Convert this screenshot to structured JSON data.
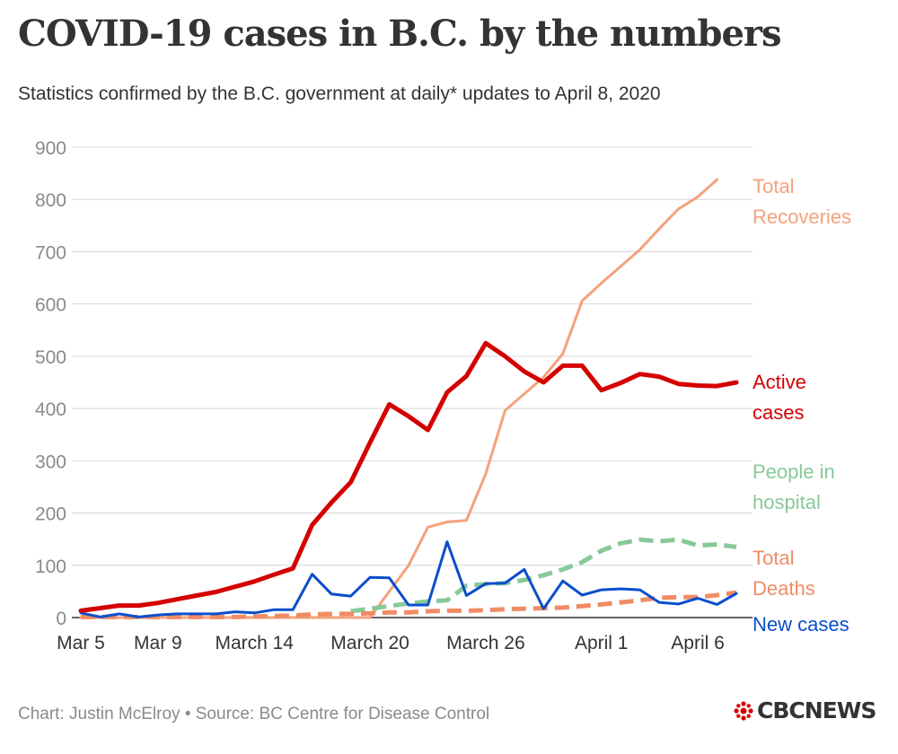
{
  "header": {
    "title": "COVID-19 cases in B.C. by the numbers",
    "subtitle": "Statistics confirmed by the B.C. government at daily* updates to April 8, 2020"
  },
  "footer": {
    "source": "Chart: Justin McElroy • Source: BC Centre for Disease Control",
    "logo_text": "CBCNEWS"
  },
  "chart_data": {
    "type": "line",
    "x": [
      "Mar 5",
      "Mar 6",
      "Mar 7",
      "Mar 8",
      "Mar 9",
      "Mar 10",
      "Mar 11",
      "Mar 12",
      "Mar 13",
      "March 14",
      "Mar 15",
      "Mar 16",
      "Mar 17",
      "Mar 18",
      "Mar 19",
      "March 20",
      "Mar 21",
      "Mar 22",
      "Mar 23",
      "Mar 24",
      "Mar 25",
      "March 26",
      "Mar 27",
      "Mar 28",
      "Mar 29",
      "Mar 30",
      "Mar 31",
      "April 1",
      "Apr 2",
      "Apr 3",
      "Apr 4",
      "Apr 5",
      "April 6",
      "Apr 7",
      "Apr 8"
    ],
    "xticks": [
      {
        "index": 0,
        "label": "Mar 5"
      },
      {
        "index": 4,
        "label": "Mar 9"
      },
      {
        "index": 9,
        "label": "March 14"
      },
      {
        "index": 15,
        "label": "March 20"
      },
      {
        "index": 21,
        "label": "March 26"
      },
      {
        "index": 27,
        "label": "April 1"
      },
      {
        "index": 32,
        "label": "April 6"
      }
    ],
    "yticks": [
      0,
      100,
      200,
      300,
      400,
      500,
      600,
      700,
      800,
      900
    ],
    "ylim": [
      0,
      900
    ],
    "grid": true,
    "legend": "direct labels at right end of lines",
    "series": [
      {
        "name": "Total Recoveries",
        "label_lines": [
          "Total",
          "Recoveries"
        ],
        "color": "#f4a27c",
        "style": "solid",
        "width": 3,
        "values": [
          0,
          0,
          0,
          0,
          0,
          0,
          0,
          0,
          0,
          0,
          0,
          0,
          0,
          0,
          0,
          0,
          50,
          100,
          173,
          183,
          186,
          275,
          396,
          428,
          460,
          505,
          606,
          640,
          672,
          704,
          744,
          782,
          805,
          838,
          null
        ]
      },
      {
        "name": "Active cases",
        "label_lines": [
          "Active",
          "cases"
        ],
        "color": "#d40000",
        "style": "solid",
        "width": 5,
        "values": [
          13,
          18,
          23,
          23,
          28,
          35,
          42,
          49,
          59,
          69,
          82,
          94,
          177,
          220,
          259,
          335,
          408,
          385,
          359,
          431,
          462,
          525,
          500,
          471,
          450,
          482,
          482,
          435,
          449,
          466,
          461,
          447,
          444,
          443,
          450
        ]
      },
      {
        "name": "People in hospital",
        "label_lines": [
          "People in",
          "hospital"
        ],
        "color": "#88c999",
        "style": "dashed",
        "width": 5,
        "values": [
          null,
          null,
          null,
          null,
          null,
          null,
          null,
          null,
          null,
          null,
          null,
          null,
          null,
          null,
          12,
          17,
          22,
          27,
          31,
          33,
          61,
          64,
          66,
          72,
          81,
          92,
          106,
          128,
          142,
          149,
          146,
          149,
          138,
          140,
          135
        ]
      },
      {
        "name": "Total Deaths",
        "label_lines": [
          "Total",
          "Deaths"
        ],
        "color": "#f08c64",
        "style": "dashed",
        "width": 5,
        "values": [
          1,
          1,
          1,
          1,
          1,
          1,
          1,
          1,
          1,
          2,
          3,
          4,
          6,
          7,
          7,
          8,
          10,
          10,
          12,
          13,
          13,
          14,
          16,
          17,
          18,
          19,
          22,
          25,
          29,
          33,
          38,
          39,
          39,
          43,
          48
        ]
      },
      {
        "name": "New cases",
        "label_lines": [
          "New cases"
        ],
        "color": "#0a4ecc",
        "style": "solid",
        "width": 3,
        "values": [
          9,
          1,
          7,
          1,
          5,
          7,
          7,
          7,
          11,
          9,
          15,
          15,
          83,
          45,
          41,
          77,
          76,
          24,
          24,
          145,
          42,
          65,
          66,
          92,
          17,
          70,
          43,
          53,
          55,
          53,
          29,
          26,
          37,
          25,
          46
        ]
      }
    ]
  }
}
